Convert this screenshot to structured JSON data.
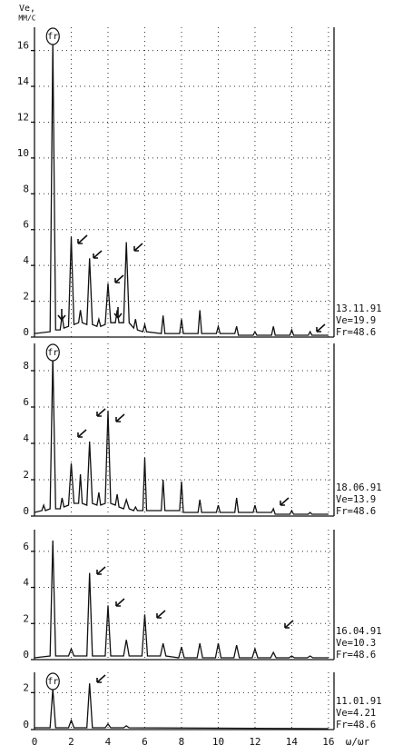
{
  "chart_data": [
    {
      "type": "line",
      "ylabel": [
        "Ve,",
        "MM/C"
      ],
      "peak_label": "fr",
      "annotation": [
        "13.11.91",
        "Ve=19.9",
        "Fr=48.6"
      ],
      "xlim": [
        0,
        16.3
      ],
      "ylim": [
        0,
        17.3
      ],
      "yticks": [
        0,
        2,
        4,
        6,
        8,
        10,
        12,
        14,
        16
      ],
      "grid": true,
      "color": "#111111",
      "x": [
        0,
        0.85,
        1,
        1.15,
        1.4,
        1.5,
        1.6,
        1.85,
        2,
        2.15,
        2.4,
        2.5,
        2.6,
        2.85,
        3,
        3.15,
        3.4,
        3.5,
        3.6,
        3.85,
        4,
        4.15,
        4.4,
        4.5,
        4.6,
        4.85,
        5,
        5.15,
        5.4,
        5.5,
        5.6,
        5.9,
        6,
        6.1,
        6.9,
        7,
        7.1,
        7.9,
        8,
        8.1,
        8.9,
        9,
        9.1,
        9.9,
        10,
        10.1,
        10.9,
        11,
        11.1,
        11.9,
        12,
        12.1,
        12.9,
        13,
        13.1,
        13.9,
        14,
        14.1,
        14.9,
        15,
        15.1,
        16
      ],
      "values": [
        0.2,
        0.3,
        16.5,
        0.4,
        0.4,
        1.2,
        0.5,
        0.6,
        5.6,
        0.7,
        0.8,
        1.5,
        0.8,
        0.7,
        4.4,
        0.7,
        0.6,
        1.0,
        0.6,
        0.7,
        3.0,
        0.8,
        0.8,
        1.5,
        0.8,
        0.8,
        5.3,
        0.8,
        0.5,
        1.0,
        0.4,
        0.3,
        0.7,
        0.3,
        0.2,
        1.2,
        0.2,
        0.2,
        1.0,
        0.2,
        0.2,
        1.5,
        0.2,
        0.2,
        0.6,
        0.2,
        0.2,
        0.6,
        0.1,
        0.1,
        0.3,
        0.1,
        0.1,
        0.6,
        0.1,
        0.1,
        0.4,
        0.1,
        0.1,
        0.3,
        0.1,
        0.1
      ]
    },
    {
      "type": "line",
      "peak_label": "fr",
      "annotation": [
        "18.06.91",
        "Ve=13.9",
        "Fr=48.6"
      ],
      "xlim": [
        0,
        16.3
      ],
      "ylim": [
        0,
        9.5
      ],
      "yticks": [
        0,
        2,
        4,
        6,
        8
      ],
      "grid": true,
      "color": "#111111",
      "x": [
        0,
        0.4,
        0.5,
        0.6,
        0.85,
        1,
        1.15,
        1.4,
        1.5,
        1.6,
        1.85,
        2,
        2.15,
        2.4,
        2.5,
        2.6,
        2.85,
        3,
        3.15,
        3.4,
        3.5,
        3.6,
        3.85,
        4,
        4.15,
        4.4,
        4.5,
        4.6,
        4.85,
        5,
        5.15,
        5.4,
        5.5,
        5.6,
        5.9,
        6,
        6.1,
        6.9,
        7,
        7.1,
        7.9,
        8,
        8.1,
        8.9,
        9,
        9.1,
        9.9,
        10,
        10.1,
        10.9,
        11,
        11.1,
        11.9,
        12,
        12.1,
        12.9,
        13,
        13.1,
        13.9,
        14,
        14.1,
        14.9,
        15,
        15.1,
        16
      ],
      "values": [
        0.2,
        0.3,
        0.6,
        0.3,
        0.4,
        8.8,
        0.4,
        0.4,
        1.0,
        0.5,
        0.6,
        2.9,
        0.7,
        0.7,
        2.3,
        0.7,
        0.6,
        4.1,
        0.7,
        0.6,
        1.3,
        0.6,
        0.7,
        5.8,
        0.7,
        0.6,
        1.2,
        0.5,
        0.4,
        0.9,
        0.4,
        0.3,
        0.5,
        0.3,
        0.3,
        3.2,
        0.3,
        0.3,
        2.0,
        0.3,
        0.3,
        1.9,
        0.2,
        0.2,
        0.9,
        0.2,
        0.2,
        0.6,
        0.2,
        0.2,
        1.0,
        0.2,
        0.2,
        0.6,
        0.2,
        0.2,
        0.4,
        0.1,
        0.1,
        0.3,
        0.1,
        0.1,
        0.2,
        0.1,
        0.1
      ]
    },
    {
      "type": "line",
      "annotation": [
        "16.04.91",
        "Ve=10.3",
        "Fr=48.6"
      ],
      "xlim": [
        0,
        16.3
      ],
      "ylim": [
        0,
        7.2
      ],
      "yticks": [
        0,
        2,
        4,
        6
      ],
      "grid": true,
      "color": "#111111",
      "x": [
        0,
        0.85,
        1,
        1.15,
        1.85,
        2,
        2.15,
        2.85,
        3,
        3.15,
        3.85,
        4,
        4.15,
        4.85,
        5,
        5.15,
        5.85,
        6,
        6.15,
        6.85,
        7,
        7.15,
        7.85,
        8,
        8.15,
        8.85,
        9,
        9.15,
        9.85,
        10,
        10.15,
        10.85,
        11,
        11.15,
        11.85,
        12,
        12.15,
        12.85,
        13,
        13.15,
        13.85,
        14,
        14.15,
        14.85,
        15,
        15.15,
        16
      ],
      "values": [
        0.1,
        0.2,
        6.6,
        0.2,
        0.2,
        0.6,
        0.2,
        0.2,
        4.8,
        0.2,
        0.2,
        3.0,
        0.2,
        0.2,
        1.1,
        0.2,
        0.2,
        2.5,
        0.2,
        0.2,
        0.9,
        0.2,
        0.1,
        0.7,
        0.1,
        0.1,
        0.9,
        0.1,
        0.1,
        0.9,
        0.1,
        0.1,
        0.8,
        0.1,
        0.1,
        0.6,
        0.1,
        0.1,
        0.4,
        0.1,
        0.1,
        0.2,
        0.1,
        0.1,
        0.2,
        0.1,
        0.1
      ]
    },
    {
      "type": "line",
      "peak_label": "fr",
      "annotation": [
        "11.01.91",
        "Ve=4.21",
        "Fr=48.6"
      ],
      "xlabel": "ω/ωr",
      "xlim": [
        0,
        16.3
      ],
      "xticks": [
        0,
        2,
        4,
        6,
        8,
        10,
        12,
        14,
        16
      ],
      "ylim": [
        0,
        3.1
      ],
      "yticks": [
        0,
        2
      ],
      "grid": true,
      "color": "#111111",
      "x": [
        0,
        0.85,
        1,
        1.15,
        1.85,
        2,
        2.15,
        2.85,
        3,
        3.15,
        3.85,
        4,
        4.15,
        4.85,
        5,
        5.15,
        16
      ],
      "values": [
        0.1,
        0.1,
        2.2,
        0.1,
        0.1,
        0.5,
        0.1,
        0.1,
        2.5,
        0.1,
        0.1,
        0.3,
        0.1,
        0.1,
        0.2,
        0.1,
        0.05
      ]
    }
  ]
}
